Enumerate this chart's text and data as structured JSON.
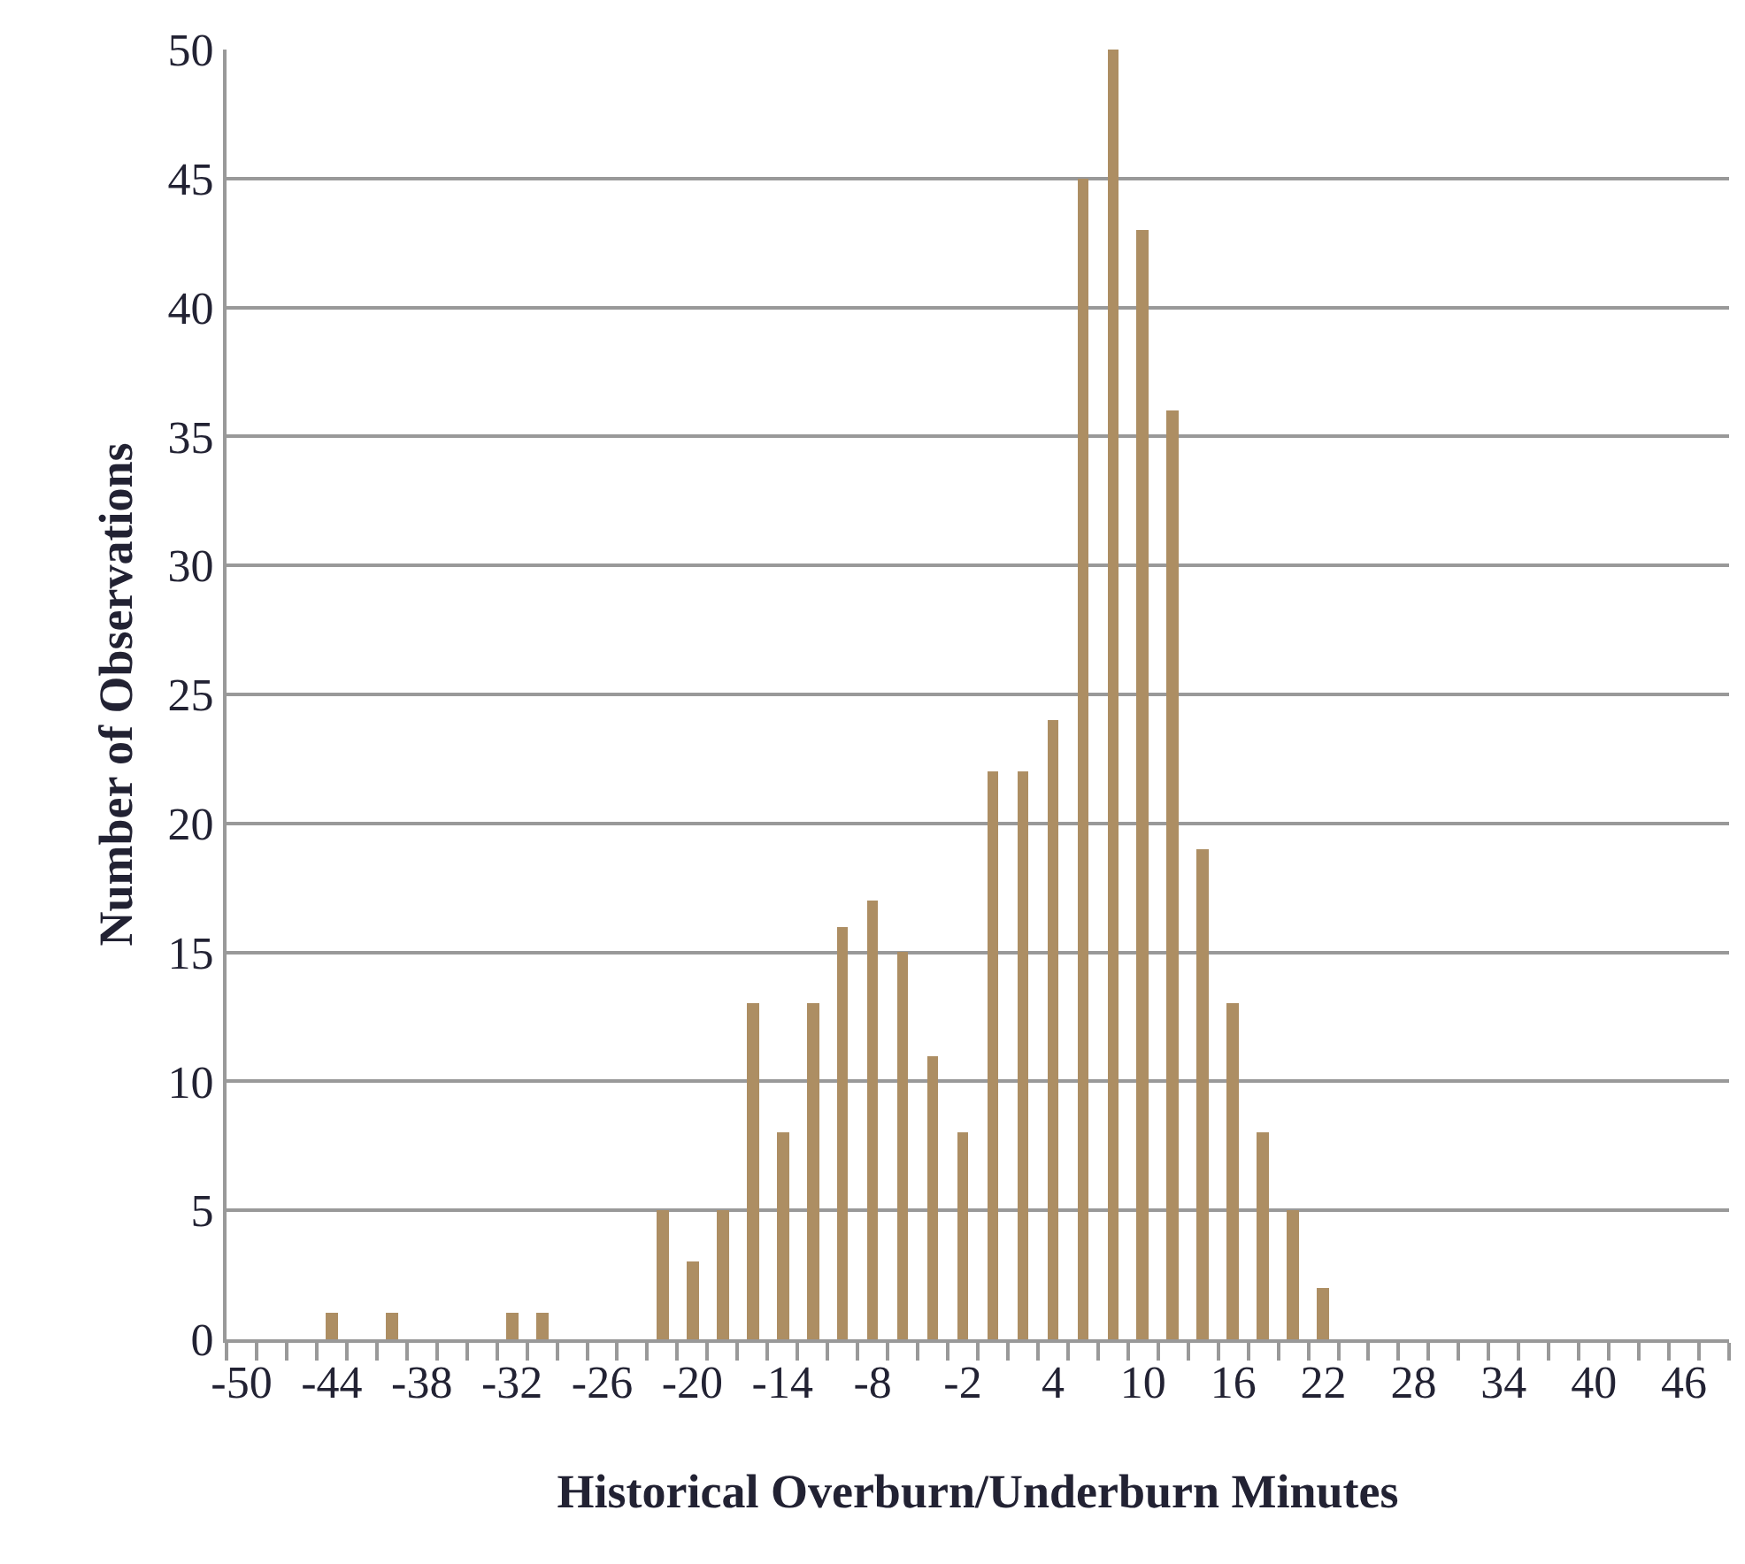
{
  "chart_data": {
    "type": "bar",
    "xlabel": "Historical Overburn/Underburn Minutes",
    "ylabel": "Number of Observations",
    "categories": [
      "-50",
      null,
      null,
      "-44",
      null,
      null,
      "-38",
      null,
      null,
      "-32",
      null,
      null,
      "-26",
      null,
      null,
      "-20",
      null,
      null,
      "-14",
      null,
      null,
      "-8",
      null,
      null,
      "-2",
      null,
      null,
      "4",
      null,
      null,
      "10",
      null,
      null,
      "16",
      null,
      null,
      "22",
      null,
      null,
      "28",
      null,
      null,
      "34",
      null,
      null,
      "40",
      null,
      null,
      "46",
      null
    ],
    "values": [
      0,
      0,
      0,
      1,
      0,
      1,
      0,
      0,
      0,
      1,
      1,
      0,
      0,
      0,
      5,
      3,
      5,
      13,
      8,
      13,
      16,
      17,
      15,
      11,
      8,
      22,
      22,
      24,
      45,
      50,
      43,
      36,
      19,
      13,
      8,
      5,
      2,
      0,
      0,
      0,
      0,
      0,
      0,
      0,
      0,
      0,
      0,
      0,
      0,
      0
    ],
    "color": "#ad8e63",
    "ylim": [
      0,
      50
    ],
    "yticks": [
      0,
      5,
      10,
      15,
      20,
      25,
      30,
      35,
      40,
      45,
      50
    ],
    "grid": "y",
    "legend": false
  }
}
